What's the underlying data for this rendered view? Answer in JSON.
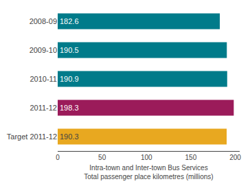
{
  "chart_data": {
    "type": "bar",
    "orientation": "horizontal",
    "x_label": "Intra-town and Inter-town Bus Services\nTotal passenger place kilometres (millions)",
    "categories": [
      "2008-09",
      "2009-10",
      "2010-11",
      "2011-12",
      "Target 2011-12"
    ],
    "values": [
      182.6,
      190.5,
      190.9,
      198.3,
      190.3
    ],
    "colors": [
      "#007B8A",
      "#007B8A",
      "#007B8A",
      "#9B1B5A",
      "#E8A820"
    ],
    "xlim": [
      0,
      205
    ],
    "xticks": [
      0,
      50,
      100,
      150,
      200
    ],
    "data_labels": true,
    "grid": false
  }
}
